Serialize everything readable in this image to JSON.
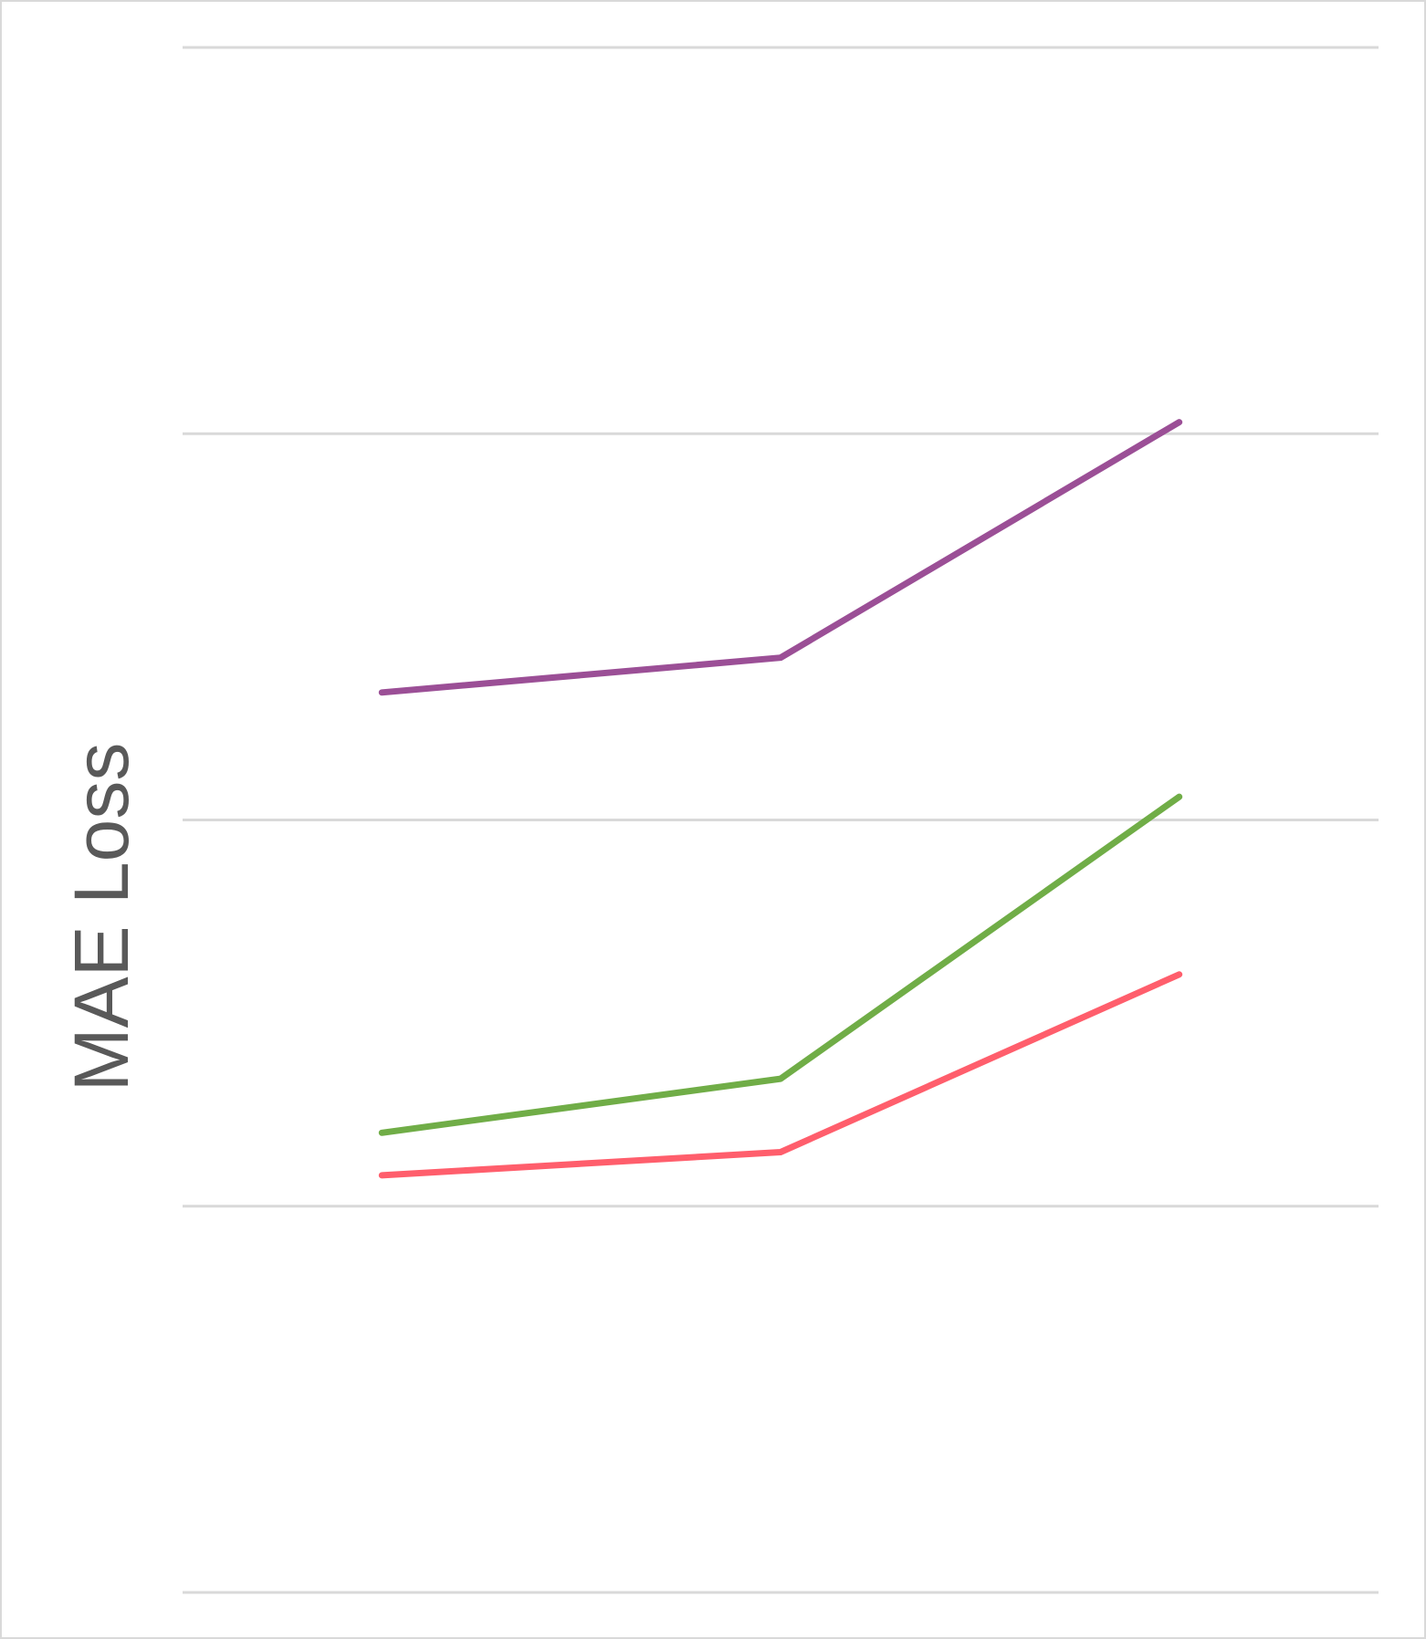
{
  "chart_data": {
    "type": "line",
    "title": "",
    "xlabel": "",
    "ylabel": "MAE Loss",
    "x": [
      1,
      2,
      3
    ],
    "ylim": [
      0,
      4
    ],
    "yticks": [
      0,
      1,
      2,
      3,
      4
    ],
    "grid": true,
    "legend": "none",
    "series": [
      {
        "color": "#9B4F96",
        "values": [
          2.33,
          2.42,
          3.03
        ]
      },
      {
        "color": "#70AD47",
        "values": [
          1.19,
          1.33,
          2.06
        ]
      },
      {
        "color": "#FF5E6C",
        "values": [
          1.08,
          1.14,
          1.6
        ]
      }
    ]
  }
}
